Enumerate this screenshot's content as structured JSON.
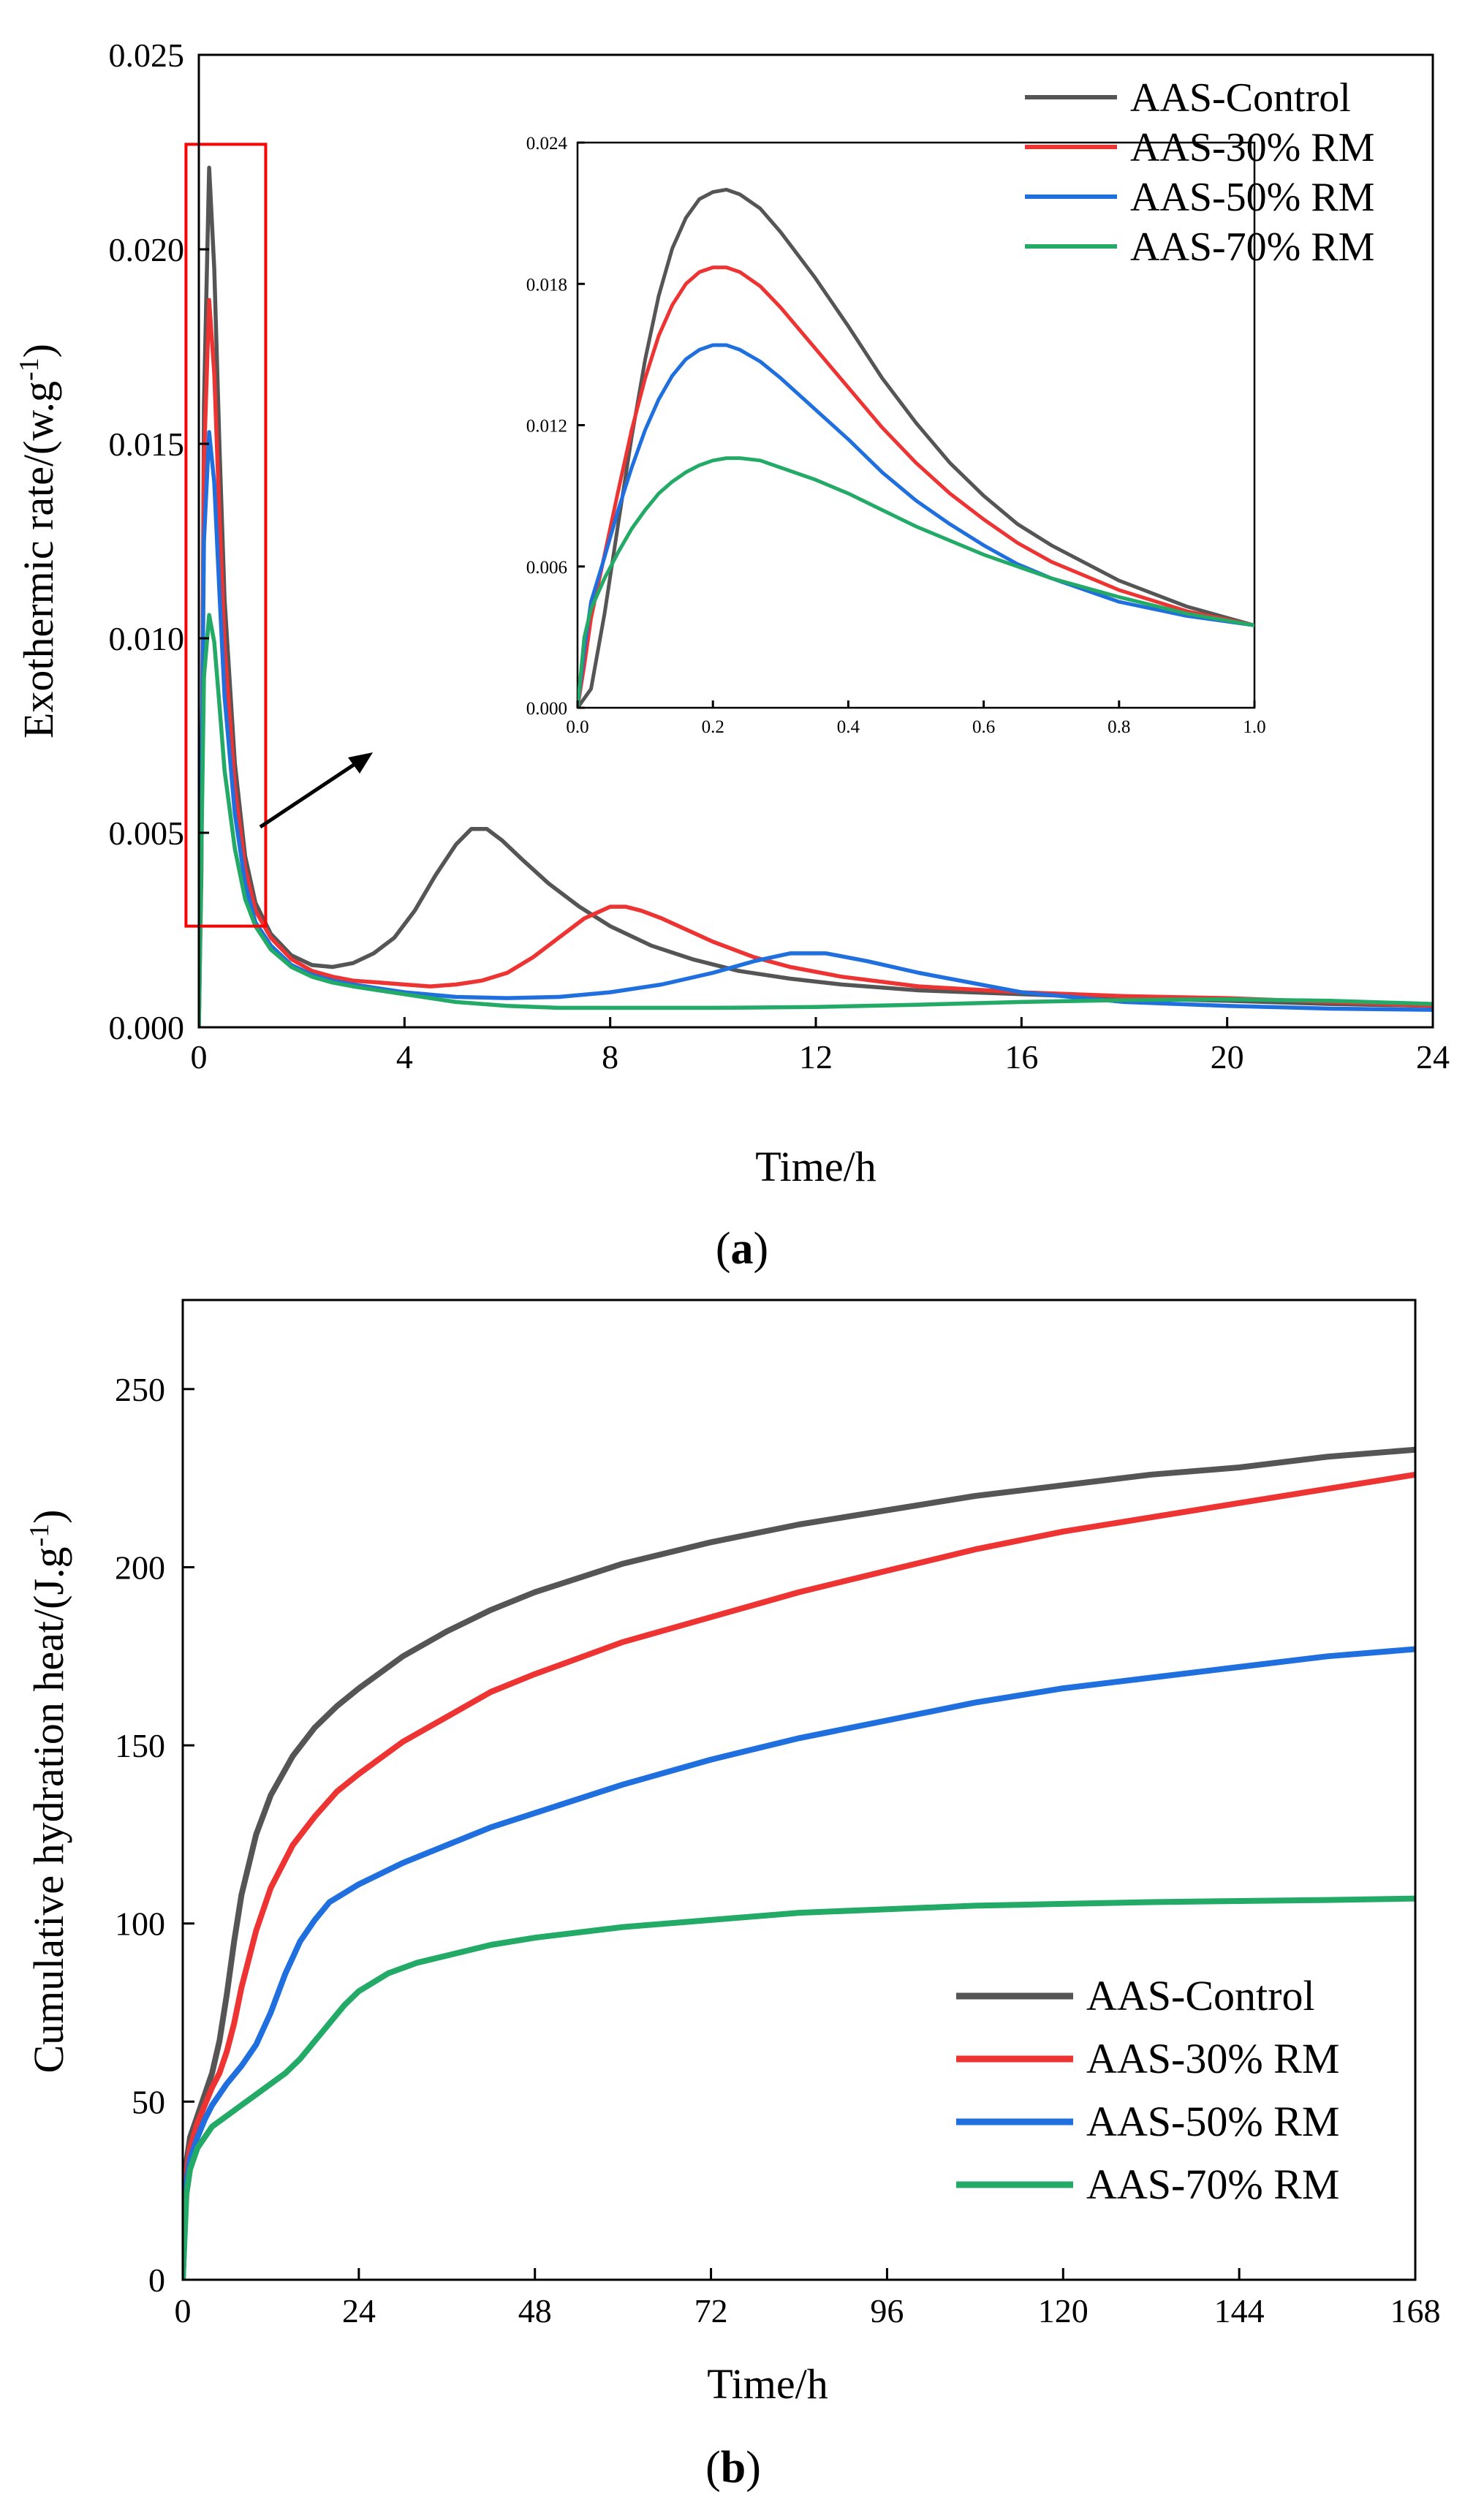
{
  "chart_data": [
    {
      "panel": "a",
      "type": "line",
      "panel_label": {
        "open": "(",
        "letter": "a",
        "close": ")"
      },
      "xlabel": "Time/h",
      "ylabel": "Exothermic rate/(w.g",
      "ylabel_sup": "-1",
      "ylabel_close": ")",
      "xlim": [
        0,
        24
      ],
      "ylim": [
        0,
        0.025
      ],
      "xticks": [
        "0",
        "4",
        "8",
        "12",
        "16",
        "20",
        "24"
      ],
      "xtick_values": [
        0,
        4,
        8,
        12,
        16,
        20,
        24
      ],
      "yticks": [
        "0.000",
        "0.005",
        "0.010",
        "0.015",
        "0.020",
        "0.025"
      ],
      "ytick_values": [
        0,
        0.005,
        0.01,
        0.015,
        0.02,
        0.025
      ],
      "legend_position": "top-right",
      "highlight_box": {
        "x_range": [
          -0.25,
          1.3
        ],
        "y_range": [
          0.0026,
          0.0227
        ],
        "color": "#ff0000"
      },
      "series": [
        {
          "name": "AAS-Control",
          "color": "#555555",
          "x": [
            0,
            0.05,
            0.1,
            0.2,
            0.3,
            0.4,
            0.5,
            0.7,
            0.9,
            1.1,
            1.4,
            1.8,
            2.2,
            2.6,
            3.0,
            3.4,
            3.8,
            4.2,
            4.6,
            5.0,
            5.3,
            5.6,
            5.9,
            6.3,
            6.8,
            7.4,
            8.0,
            8.8,
            9.6,
            10.5,
            11.5,
            12.5,
            14,
            16,
            18,
            20,
            22,
            24
          ],
          "y": [
            0,
            0.004,
            0.016,
            0.0221,
            0.0195,
            0.015,
            0.011,
            0.0068,
            0.0044,
            0.0032,
            0.0024,
            0.00185,
            0.0016,
            0.00155,
            0.00165,
            0.0019,
            0.0023,
            0.003,
            0.0039,
            0.0047,
            0.0051,
            0.0051,
            0.0048,
            0.0043,
            0.0037,
            0.0031,
            0.0026,
            0.0021,
            0.00175,
            0.00145,
            0.00125,
            0.0011,
            0.00095,
            0.00085,
            0.00075,
            0.00068,
            0.0006,
            0.00055
          ]
        },
        {
          "name": "AAS-30% RM",
          "color": "#ee3333",
          "x": [
            0,
            0.05,
            0.1,
            0.2,
            0.3,
            0.4,
            0.5,
            0.7,
            0.9,
            1.1,
            1.4,
            1.8,
            2.2,
            2.6,
            3.0,
            3.5,
            4.0,
            4.5,
            5.0,
            5.5,
            6.0,
            6.5,
            7.0,
            7.5,
            8.0,
            8.3,
            8.6,
            9.0,
            9.5,
            10.0,
            10.8,
            11.5,
            12.5,
            14,
            16,
            18,
            20,
            22,
            24
          ],
          "y": [
            0,
            0.005,
            0.0145,
            0.0187,
            0.0168,
            0.0132,
            0.0098,
            0.0062,
            0.0041,
            0.003,
            0.0023,
            0.00175,
            0.00145,
            0.0013,
            0.0012,
            0.00115,
            0.0011,
            0.00105,
            0.0011,
            0.0012,
            0.0014,
            0.0018,
            0.0023,
            0.0028,
            0.0031,
            0.0031,
            0.003,
            0.0028,
            0.0025,
            0.0022,
            0.0018,
            0.00155,
            0.0013,
            0.00105,
            0.0009,
            0.0008,
            0.00075,
            0.00065,
            0.00055
          ]
        },
        {
          "name": "AAS-50% RM",
          "color": "#1f6fdf",
          "x": [
            0,
            0.05,
            0.1,
            0.2,
            0.3,
            0.4,
            0.5,
            0.7,
            0.9,
            1.1,
            1.4,
            1.8,
            2.2,
            2.6,
            3.0,
            3.5,
            4.0,
            5.0,
            6.0,
            7.0,
            8.0,
            9.0,
            10.0,
            10.8,
            11.5,
            12.2,
            13.0,
            14.0,
            15.0,
            16.0,
            18.0,
            20.0,
            22.0,
            24.0
          ],
          "y": [
            0,
            0.0055,
            0.0125,
            0.0153,
            0.014,
            0.0112,
            0.0085,
            0.0055,
            0.0037,
            0.0027,
            0.0021,
            0.0016,
            0.00135,
            0.0012,
            0.0011,
            0.001,
            0.0009,
            0.00078,
            0.00075,
            0.00078,
            0.0009,
            0.0011,
            0.0014,
            0.0017,
            0.0019,
            0.0019,
            0.0017,
            0.0014,
            0.00115,
            0.0009,
            0.00065,
            0.00055,
            0.00048,
            0.00045
          ]
        },
        {
          "name": "AAS-70% RM",
          "color": "#22aa66",
          "x": [
            0,
            0.05,
            0.1,
            0.2,
            0.3,
            0.4,
            0.5,
            0.7,
            0.9,
            1.1,
            1.4,
            1.8,
            2.2,
            2.6,
            3.0,
            3.5,
            4.0,
            5.0,
            6.0,
            7.0,
            8.0,
            10.0,
            12.0,
            14.0,
            16.0,
            18.0,
            20.0,
            22.0,
            24.0
          ],
          "y": [
            0,
            0.0045,
            0.009,
            0.0106,
            0.0099,
            0.0083,
            0.0066,
            0.0046,
            0.0033,
            0.0026,
            0.002,
            0.00155,
            0.0013,
            0.00115,
            0.00105,
            0.00095,
            0.00085,
            0.00065,
            0.00055,
            0.0005,
            0.0005,
            0.0005,
            0.00052,
            0.00058,
            0.00065,
            0.0007,
            0.00072,
            0.00068,
            0.0006
          ]
        }
      ],
      "inset": {
        "xlim": [
          0,
          1.0
        ],
        "ylim": [
          0,
          0.024
        ],
        "xticks": [
          "0.0",
          "0.2",
          "0.4",
          "0.6",
          "0.8",
          "1.0"
        ],
        "xtick_values": [
          0,
          0.2,
          0.4,
          0.6,
          0.8,
          1.0
        ],
        "yticks": [
          "0.000",
          "0.006",
          "0.012",
          "0.018",
          "0.024"
        ],
        "ytick_values": [
          0,
          0.006,
          0.012,
          0.018,
          0.024
        ],
        "series": [
          {
            "name": "AAS-Control",
            "color": "#555555",
            "x": [
              0,
              0.01,
              0.02,
              0.04,
              0.06,
              0.08,
              0.1,
              0.12,
              0.14,
              0.16,
              0.18,
              0.2,
              0.22,
              0.24,
              0.27,
              0.3,
              0.35,
              0.4,
              0.45,
              0.5,
              0.55,
              0.6,
              0.65,
              0.7,
              0.8,
              0.9,
              1.0
            ],
            "y": [
              0,
              0.0004,
              0.0008,
              0.004,
              0.0078,
              0.0115,
              0.0148,
              0.0175,
              0.0195,
              0.0208,
              0.0216,
              0.0219,
              0.022,
              0.0218,
              0.0212,
              0.0202,
              0.0183,
              0.0162,
              0.014,
              0.0121,
              0.0104,
              0.009,
              0.0078,
              0.0069,
              0.0054,
              0.0043,
              0.0035
            ]
          },
          {
            "name": "AAS-30% RM",
            "color": "#ee3333",
            "x": [
              0,
              0.01,
              0.02,
              0.04,
              0.06,
              0.08,
              0.1,
              0.12,
              0.14,
              0.16,
              0.18,
              0.2,
              0.22,
              0.24,
              0.27,
              0.3,
              0.35,
              0.4,
              0.45,
              0.5,
              0.55,
              0.6,
              0.65,
              0.7,
              0.8,
              0.9,
              1.0
            ],
            "y": [
              0,
              0.0018,
              0.0038,
              0.0065,
              0.0092,
              0.0118,
              0.014,
              0.0158,
              0.0171,
              0.018,
              0.0185,
              0.0187,
              0.0187,
              0.0185,
              0.0179,
              0.017,
              0.0153,
              0.0136,
              0.0119,
              0.0104,
              0.0091,
              0.008,
              0.007,
              0.0062,
              0.005,
              0.0041,
              0.0035
            ]
          },
          {
            "name": "AAS-50% RM",
            "color": "#1f6fdf",
            "x": [
              0,
              0.01,
              0.02,
              0.04,
              0.06,
              0.08,
              0.1,
              0.12,
              0.14,
              0.16,
              0.18,
              0.2,
              0.22,
              0.24,
              0.27,
              0.3,
              0.35,
              0.4,
              0.45,
              0.5,
              0.55,
              0.6,
              0.65,
              0.7,
              0.8,
              0.9,
              1.0
            ],
            "y": [
              0,
              0.0025,
              0.0045,
              0.0064,
              0.0084,
              0.0102,
              0.0118,
              0.0131,
              0.0141,
              0.0148,
              0.0152,
              0.0154,
              0.0154,
              0.0152,
              0.0147,
              0.014,
              0.0127,
              0.0114,
              0.01,
              0.0088,
              0.0078,
              0.0069,
              0.0061,
              0.0055,
              0.0045,
              0.0039,
              0.0035
            ]
          },
          {
            "name": "AAS-70% RM",
            "color": "#22aa66",
            "x": [
              0,
              0.01,
              0.02,
              0.04,
              0.06,
              0.08,
              0.1,
              0.12,
              0.14,
              0.16,
              0.18,
              0.2,
              0.22,
              0.24,
              0.27,
              0.3,
              0.35,
              0.4,
              0.45,
              0.5,
              0.55,
              0.6,
              0.65,
              0.7,
              0.8,
              0.9,
              1.0
            ],
            "y": [
              0,
              0.003,
              0.0042,
              0.0055,
              0.0066,
              0.0076,
              0.0084,
              0.0091,
              0.0096,
              0.01,
              0.0103,
              0.0105,
              0.0106,
              0.0106,
              0.0105,
              0.0102,
              0.0097,
              0.0091,
              0.0084,
              0.0077,
              0.0071,
              0.0065,
              0.006,
              0.0055,
              0.0047,
              0.004,
              0.0035
            ]
          }
        ]
      }
    },
    {
      "panel": "b",
      "type": "line",
      "panel_label": {
        "open": "(",
        "letter": "b",
        "close": ")"
      },
      "xlabel": "Time/h",
      "ylabel": "Cumulative hydration heat/(J.g",
      "ylabel_sup": "-1",
      "ylabel_close": ")",
      "xlim": [
        0,
        168
      ],
      "ylim": [
        0,
        275
      ],
      "xticks": [
        "0",
        "24",
        "48",
        "72",
        "96",
        "120",
        "144",
        "168"
      ],
      "xtick_values": [
        0,
        24,
        48,
        72,
        96,
        120,
        144,
        168
      ],
      "yticks": [
        "0",
        "50",
        "100",
        "150",
        "200",
        "250"
      ],
      "ytick_values": [
        0,
        50,
        100,
        150,
        200,
        250
      ],
      "legend_position": "bottom-right",
      "series": [
        {
          "name": "AAS-Control",
          "color": "#555555",
          "x": [
            0,
            0.5,
            1,
            2,
            3,
            4,
            5,
            6,
            7,
            8,
            10,
            12,
            15,
            18,
            21,
            24,
            30,
            36,
            42,
            48,
            60,
            72,
            84,
            96,
            108,
            120,
            132,
            144,
            156,
            168
          ],
          "y": [
            0,
            33,
            40,
            46,
            52,
            58,
            67,
            80,
            95,
            108,
            125,
            136,
            147,
            155,
            161,
            166,
            175,
            182,
            188,
            193,
            201,
            207,
            212,
            216,
            220,
            223,
            226,
            228,
            231,
            233
          ]
        },
        {
          "name": "AAS-30% RM",
          "color": "#ee3333",
          "x": [
            0,
            0.5,
            1,
            2,
            3,
            4,
            5,
            6,
            7,
            8,
            10,
            12,
            15,
            18,
            21,
            24,
            30,
            36,
            42,
            48,
            60,
            72,
            84,
            96,
            108,
            120,
            132,
            144,
            156,
            168
          ],
          "y": [
            0,
            30,
            37,
            44,
            49,
            54,
            58,
            64,
            72,
            82,
            98,
            110,
            122,
            130,
            137,
            142,
            151,
            158,
            165,
            170,
            179,
            186,
            193,
            199,
            205,
            210,
            214,
            218,
            222,
            226
          ]
        },
        {
          "name": "AAS-50% RM",
          "color": "#1f6fdf",
          "x": [
            0,
            0.5,
            1,
            2,
            3,
            4,
            5,
            6,
            8,
            10,
            12,
            14,
            16,
            18,
            20,
            24,
            30,
            36,
            42,
            48,
            60,
            72,
            84,
            96,
            108,
            120,
            132,
            144,
            156,
            168
          ],
          "y": [
            0,
            27,
            34,
            40,
            45,
            49,
            52,
            55,
            60,
            66,
            75,
            86,
            95,
            101,
            106,
            111,
            117,
            122,
            127,
            131,
            139,
            146,
            152,
            157,
            162,
            166,
            169,
            172,
            175,
            177
          ]
        },
        {
          "name": "AAS-70% RM",
          "color": "#22aa66",
          "x": [
            0,
            0.5,
            1,
            2,
            3,
            4,
            6,
            8,
            10,
            12,
            14,
            16,
            18,
            20,
            22,
            24,
            28,
            32,
            36,
            42,
            48,
            60,
            72,
            84,
            96,
            108,
            120,
            132,
            144,
            156,
            168
          ],
          "y": [
            0,
            24,
            31,
            37,
            40,
            43,
            46,
            49,
            52,
            55,
            58,
            62,
            67,
            72,
            77,
            81,
            86,
            89,
            91,
            94,
            96,
            99,
            101,
            103,
            104,
            105,
            105.5,
            106,
            106.3,
            106.6,
            107
          ]
        }
      ]
    }
  ]
}
